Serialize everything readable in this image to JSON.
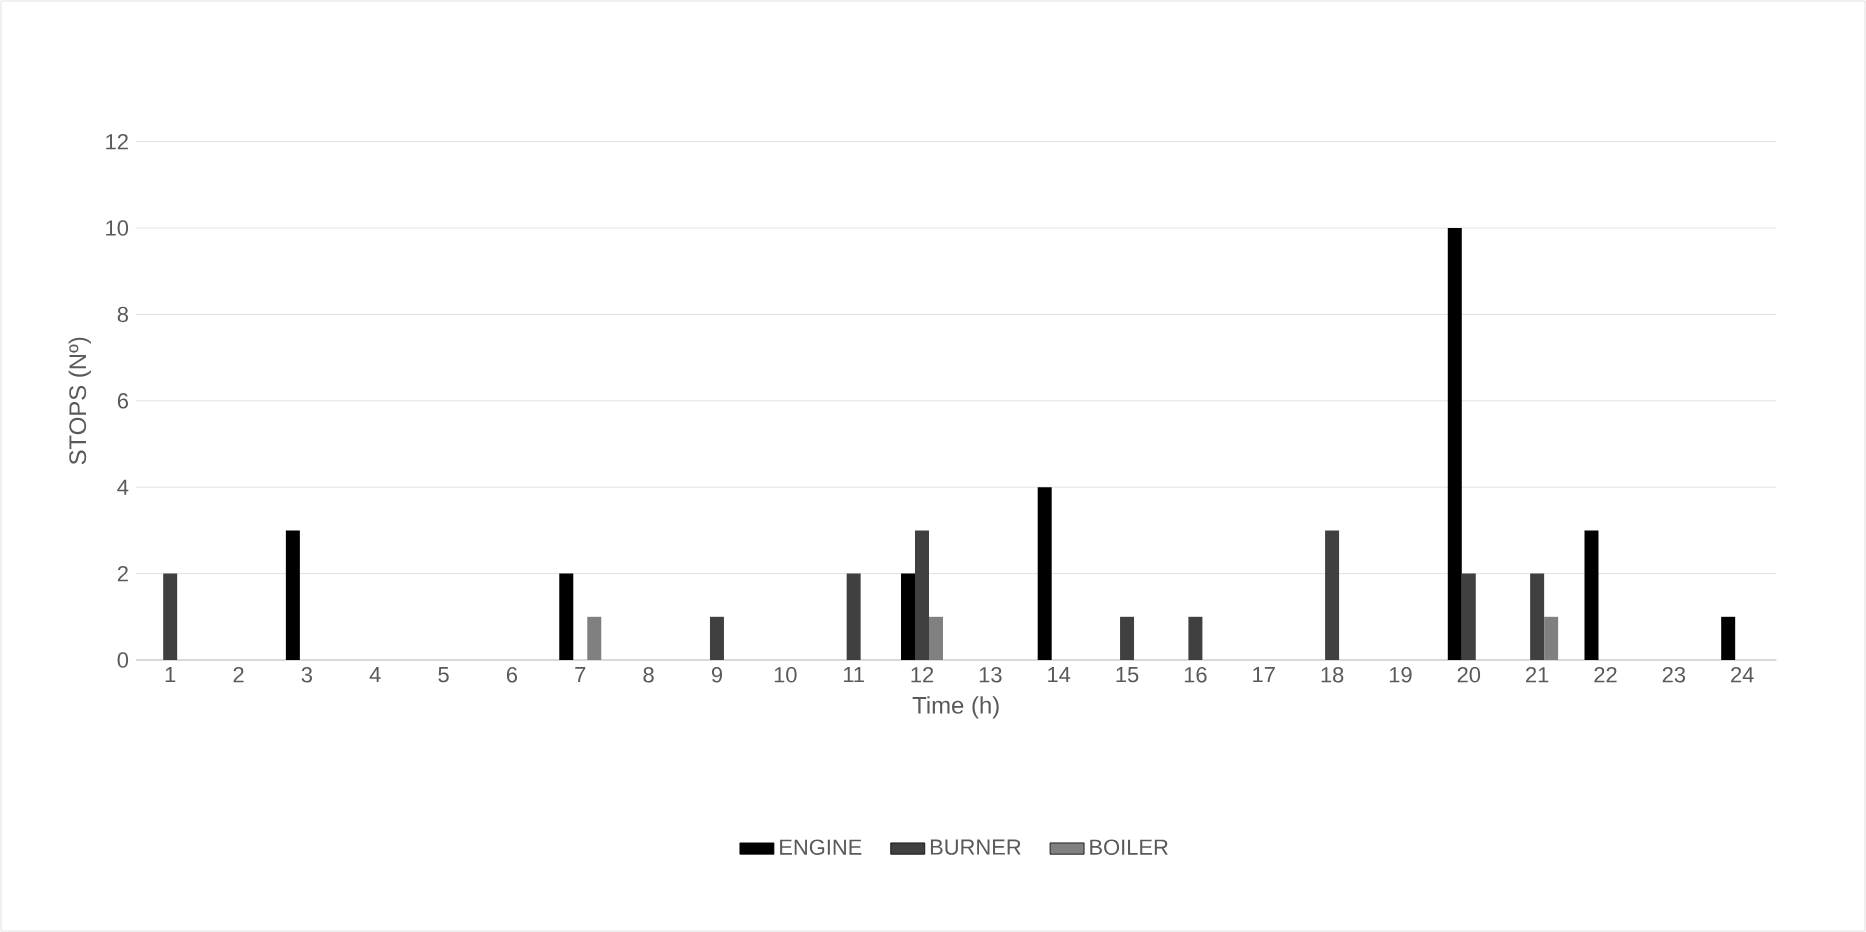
{
  "chart_data": {
    "type": "bar",
    "xlabel": "Time (h)",
    "ylabel": "STOPS (Nº)",
    "categories": [
      "1",
      "2",
      "3",
      "4",
      "5",
      "6",
      "7",
      "8",
      "9",
      "10",
      "11",
      "12",
      "13",
      "14",
      "15",
      "16",
      "17",
      "18",
      "19",
      "20",
      "21",
      "22",
      "23",
      "24"
    ],
    "series": [
      {
        "name": "ENGINE",
        "color": "#000000",
        "values": [
          0,
          0,
          3,
          0,
          0,
          0,
          2,
          0,
          0,
          0,
          0,
          2,
          0,
          4,
          0,
          0,
          0,
          0,
          0,
          10,
          0,
          3,
          0,
          1
        ]
      },
      {
        "name": "BURNER",
        "color": "#404040",
        "values": [
          2,
          0,
          0,
          0,
          0,
          0,
          0,
          0,
          1,
          0,
          2,
          3,
          0,
          0,
          1,
          1,
          0,
          3,
          0,
          2,
          2,
          0,
          0,
          0
        ]
      },
      {
        "name": "BOILER",
        "color": "#808080",
        "values": [
          0,
          0,
          0,
          0,
          0,
          0,
          1,
          0,
          0,
          0,
          0,
          1,
          0,
          0,
          0,
          0,
          0,
          0,
          0,
          0,
          1,
          0,
          0,
          0
        ]
      }
    ],
    "ylim": [
      0,
      12
    ],
    "yticks": [
      0,
      2,
      4,
      6,
      8,
      10,
      12
    ],
    "grid": "y",
    "legend": "bottom"
  }
}
